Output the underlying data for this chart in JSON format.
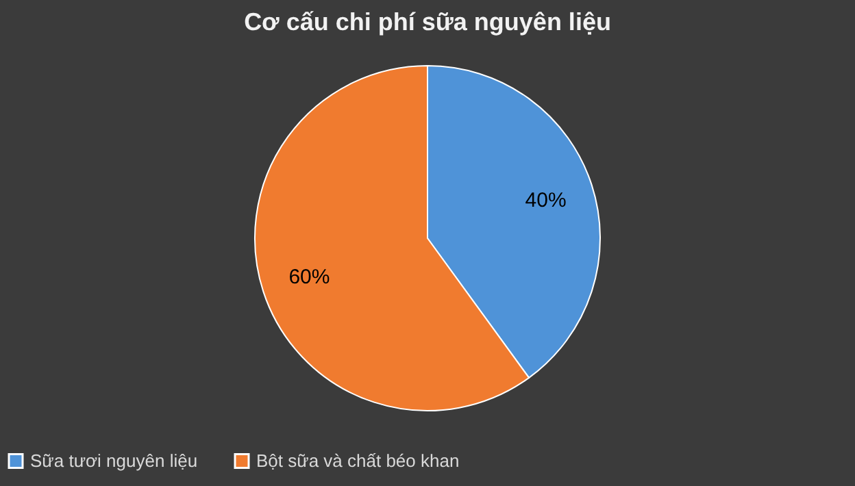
{
  "chart_data": {
    "type": "pie",
    "title": "Cơ cấu chi phí sữa nguyên liệu",
    "categories": [
      "Sữa tươi nguyên  liệu",
      "Bột sữa và chất béo khan"
    ],
    "values": [
      40,
      60
    ],
    "colors": [
      "#4f93d8",
      "#f07b2f"
    ],
    "value_labels": [
      "40%",
      "60%"
    ],
    "legend": "bottom"
  }
}
